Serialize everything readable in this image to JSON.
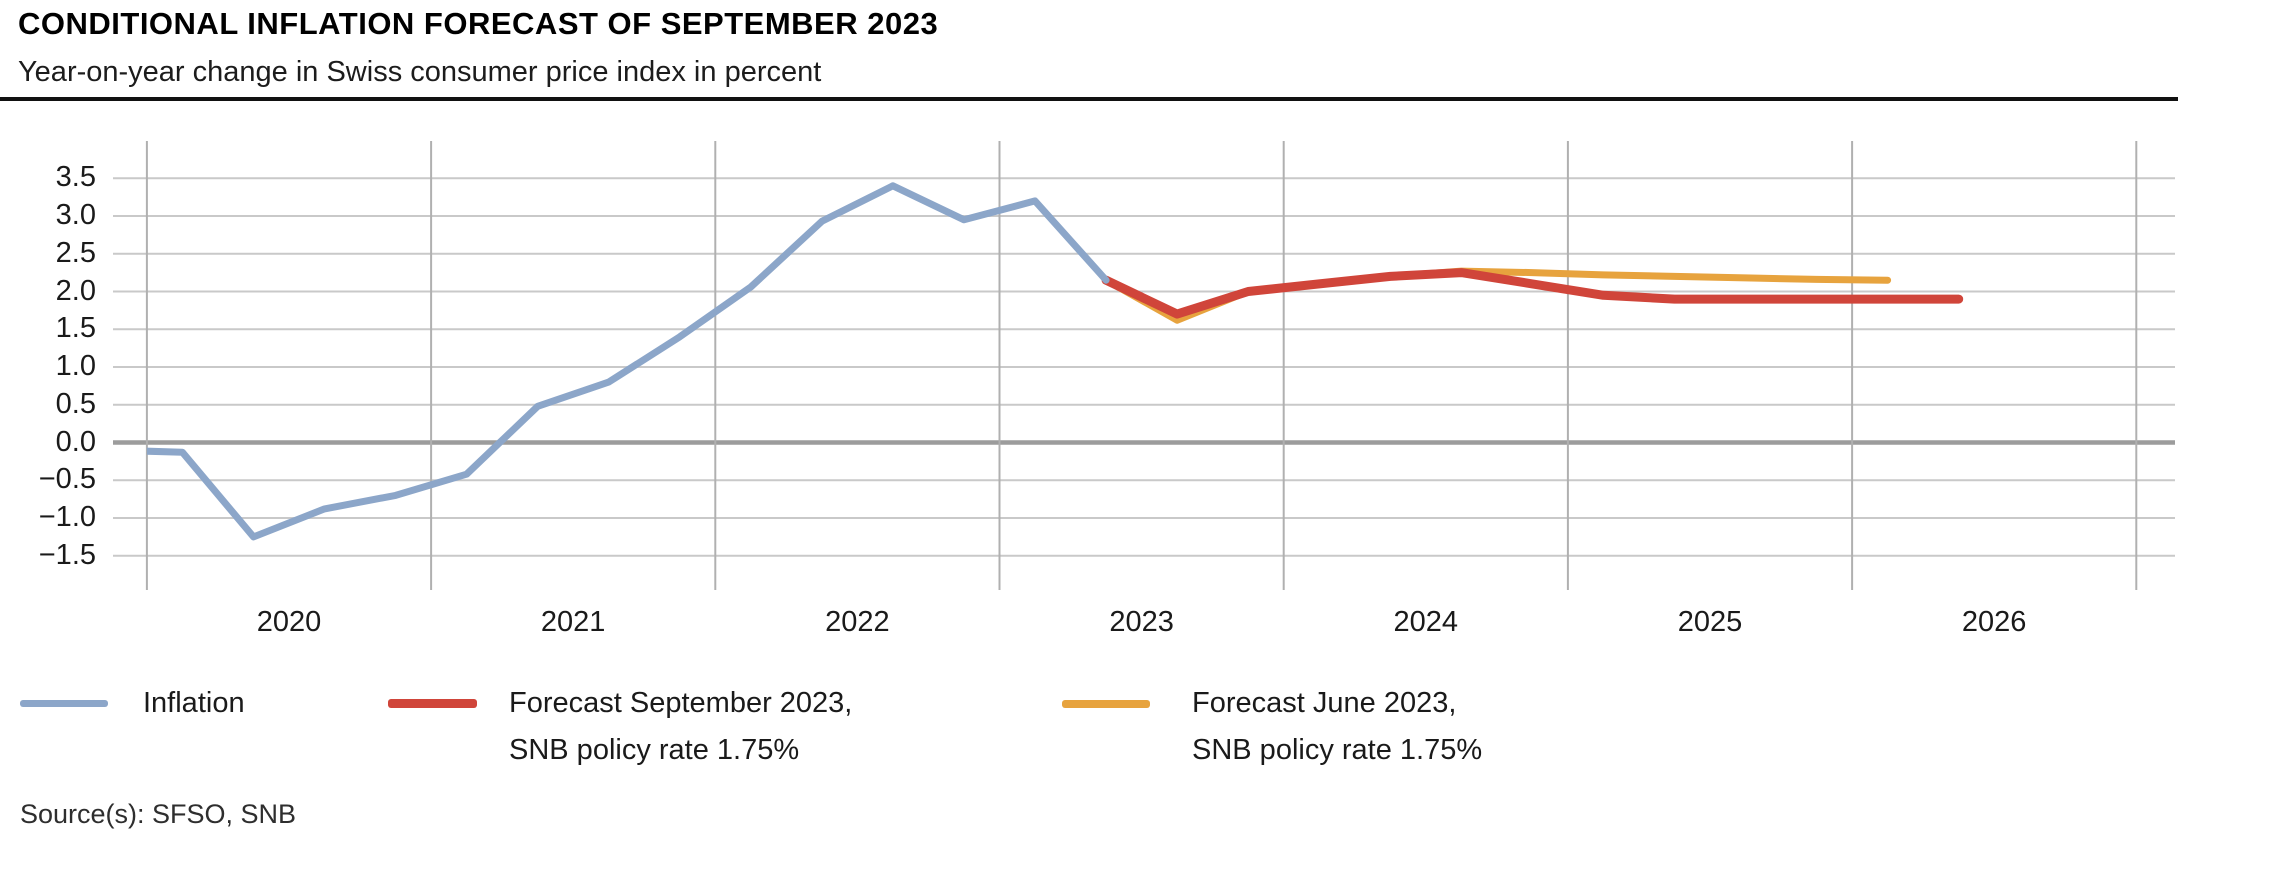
{
  "header": {
    "title": "CONDITIONAL INFLATION FORECAST OF SEPTEMBER 2023",
    "subtitle": "Year-on-year change in Swiss consumer price index in percent"
  },
  "source_text": "Source(s): SFSO, SNB",
  "colors": {
    "inflation_blue": "#8ca6c9",
    "forecast_sep_red": "#d0453a",
    "forecast_jun_yellow": "#e7a33e",
    "gridline": "#c9c9c9",
    "year_gridline": "#b0b0b0",
    "zero_line": "#9c9c9c",
    "rule": "#111111"
  },
  "legend": {
    "items": [
      {
        "label_line1": "Inflation",
        "label_line2": "",
        "series": "inflation"
      },
      {
        "label_line1": "Forecast September 2023,",
        "label_line2": "SNB policy rate 1.75%",
        "series": "forecast_september_2023"
      },
      {
        "label_line1": "Forecast June 2023,",
        "label_line2": "SNB policy rate 1.75%",
        "series": "forecast_june_2023"
      }
    ]
  },
  "chart_data": {
    "type": "line",
    "title": "CONDITIONAL INFLATION FORECAST OF SEPTEMBER 2023",
    "subtitle": "Year-on-year change in Swiss consumer price index in percent",
    "unit": "percent, year-on-year change in Swiss CPI",
    "x_tick_labels": [
      "2020",
      "2021",
      "2022",
      "2023",
      "2024",
      "2025",
      "2026"
    ],
    "y_tick_values": [
      3.5,
      3.0,
      2.5,
      2.0,
      1.5,
      1.0,
      0.5,
      0.0,
      -0.5,
      -1.0,
      -1.5
    ],
    "ylim": [
      -2.0,
      4.0
    ],
    "xlim_years": [
      2020.0,
      2027.14
    ],
    "grid": true,
    "zero_line_emphasized": true,
    "legend_position": "bottom",
    "series": [
      {
        "name": "Inflation",
        "color_key": "inflation_blue",
        "stroke_width": 7,
        "points": [
          [
            "2019Q4",
            -0.1
          ],
          [
            "2020Q1",
            -0.13
          ],
          [
            "2020Q2",
            -1.25
          ],
          [
            "2020Q3",
            -0.88
          ],
          [
            "2020Q4",
            -0.7
          ],
          [
            "2021Q1",
            -0.42
          ],
          [
            "2021Q2",
            0.48
          ],
          [
            "2021Q3",
            0.8
          ],
          [
            "2021Q4",
            1.4
          ],
          [
            "2022Q1",
            2.06
          ],
          [
            "2022Q2",
            2.93
          ],
          [
            "2022Q3",
            3.4
          ],
          [
            "2022Q4",
            2.95
          ],
          [
            "2023Q1",
            3.2
          ],
          [
            "2023Q2",
            2.15
          ]
        ]
      },
      {
        "name": "Forecast September 2023, SNB policy rate 1.75%",
        "color_key": "forecast_sep_red",
        "stroke_width": 9,
        "points": [
          [
            "2023Q2",
            2.15
          ],
          [
            "2023Q3",
            1.7
          ],
          [
            "2023Q4",
            2.0
          ],
          [
            "2024Q1",
            2.1
          ],
          [
            "2024Q2",
            2.2
          ],
          [
            "2024Q3",
            2.25
          ],
          [
            "2024Q4",
            2.1
          ],
          [
            "2025Q1",
            1.95
          ],
          [
            "2025Q2",
            1.9
          ],
          [
            "2025Q3",
            1.9
          ],
          [
            "2025Q4",
            1.9
          ],
          [
            "2026Q1",
            1.9
          ],
          [
            "2026Q2",
            1.9
          ]
        ]
      },
      {
        "name": "Forecast June 2023, SNB policy rate 1.75%",
        "color_key": "forecast_jun_yellow",
        "stroke_width": 7,
        "points": [
          [
            "2023Q2",
            2.15
          ],
          [
            "2023Q3",
            1.62
          ],
          [
            "2023Q4",
            2.0
          ],
          [
            "2024Q1",
            2.1
          ],
          [
            "2024Q2",
            2.2
          ],
          [
            "2024Q3",
            2.27
          ],
          [
            "2024Q4",
            2.25
          ],
          [
            "2025Q1",
            2.22
          ],
          [
            "2025Q2",
            2.2
          ],
          [
            "2025Q3",
            2.18
          ],
          [
            "2025Q4",
            2.16
          ],
          [
            "2026Q1",
            2.15
          ]
        ]
      }
    ]
  },
  "layout_note_values_visible_only": true
}
